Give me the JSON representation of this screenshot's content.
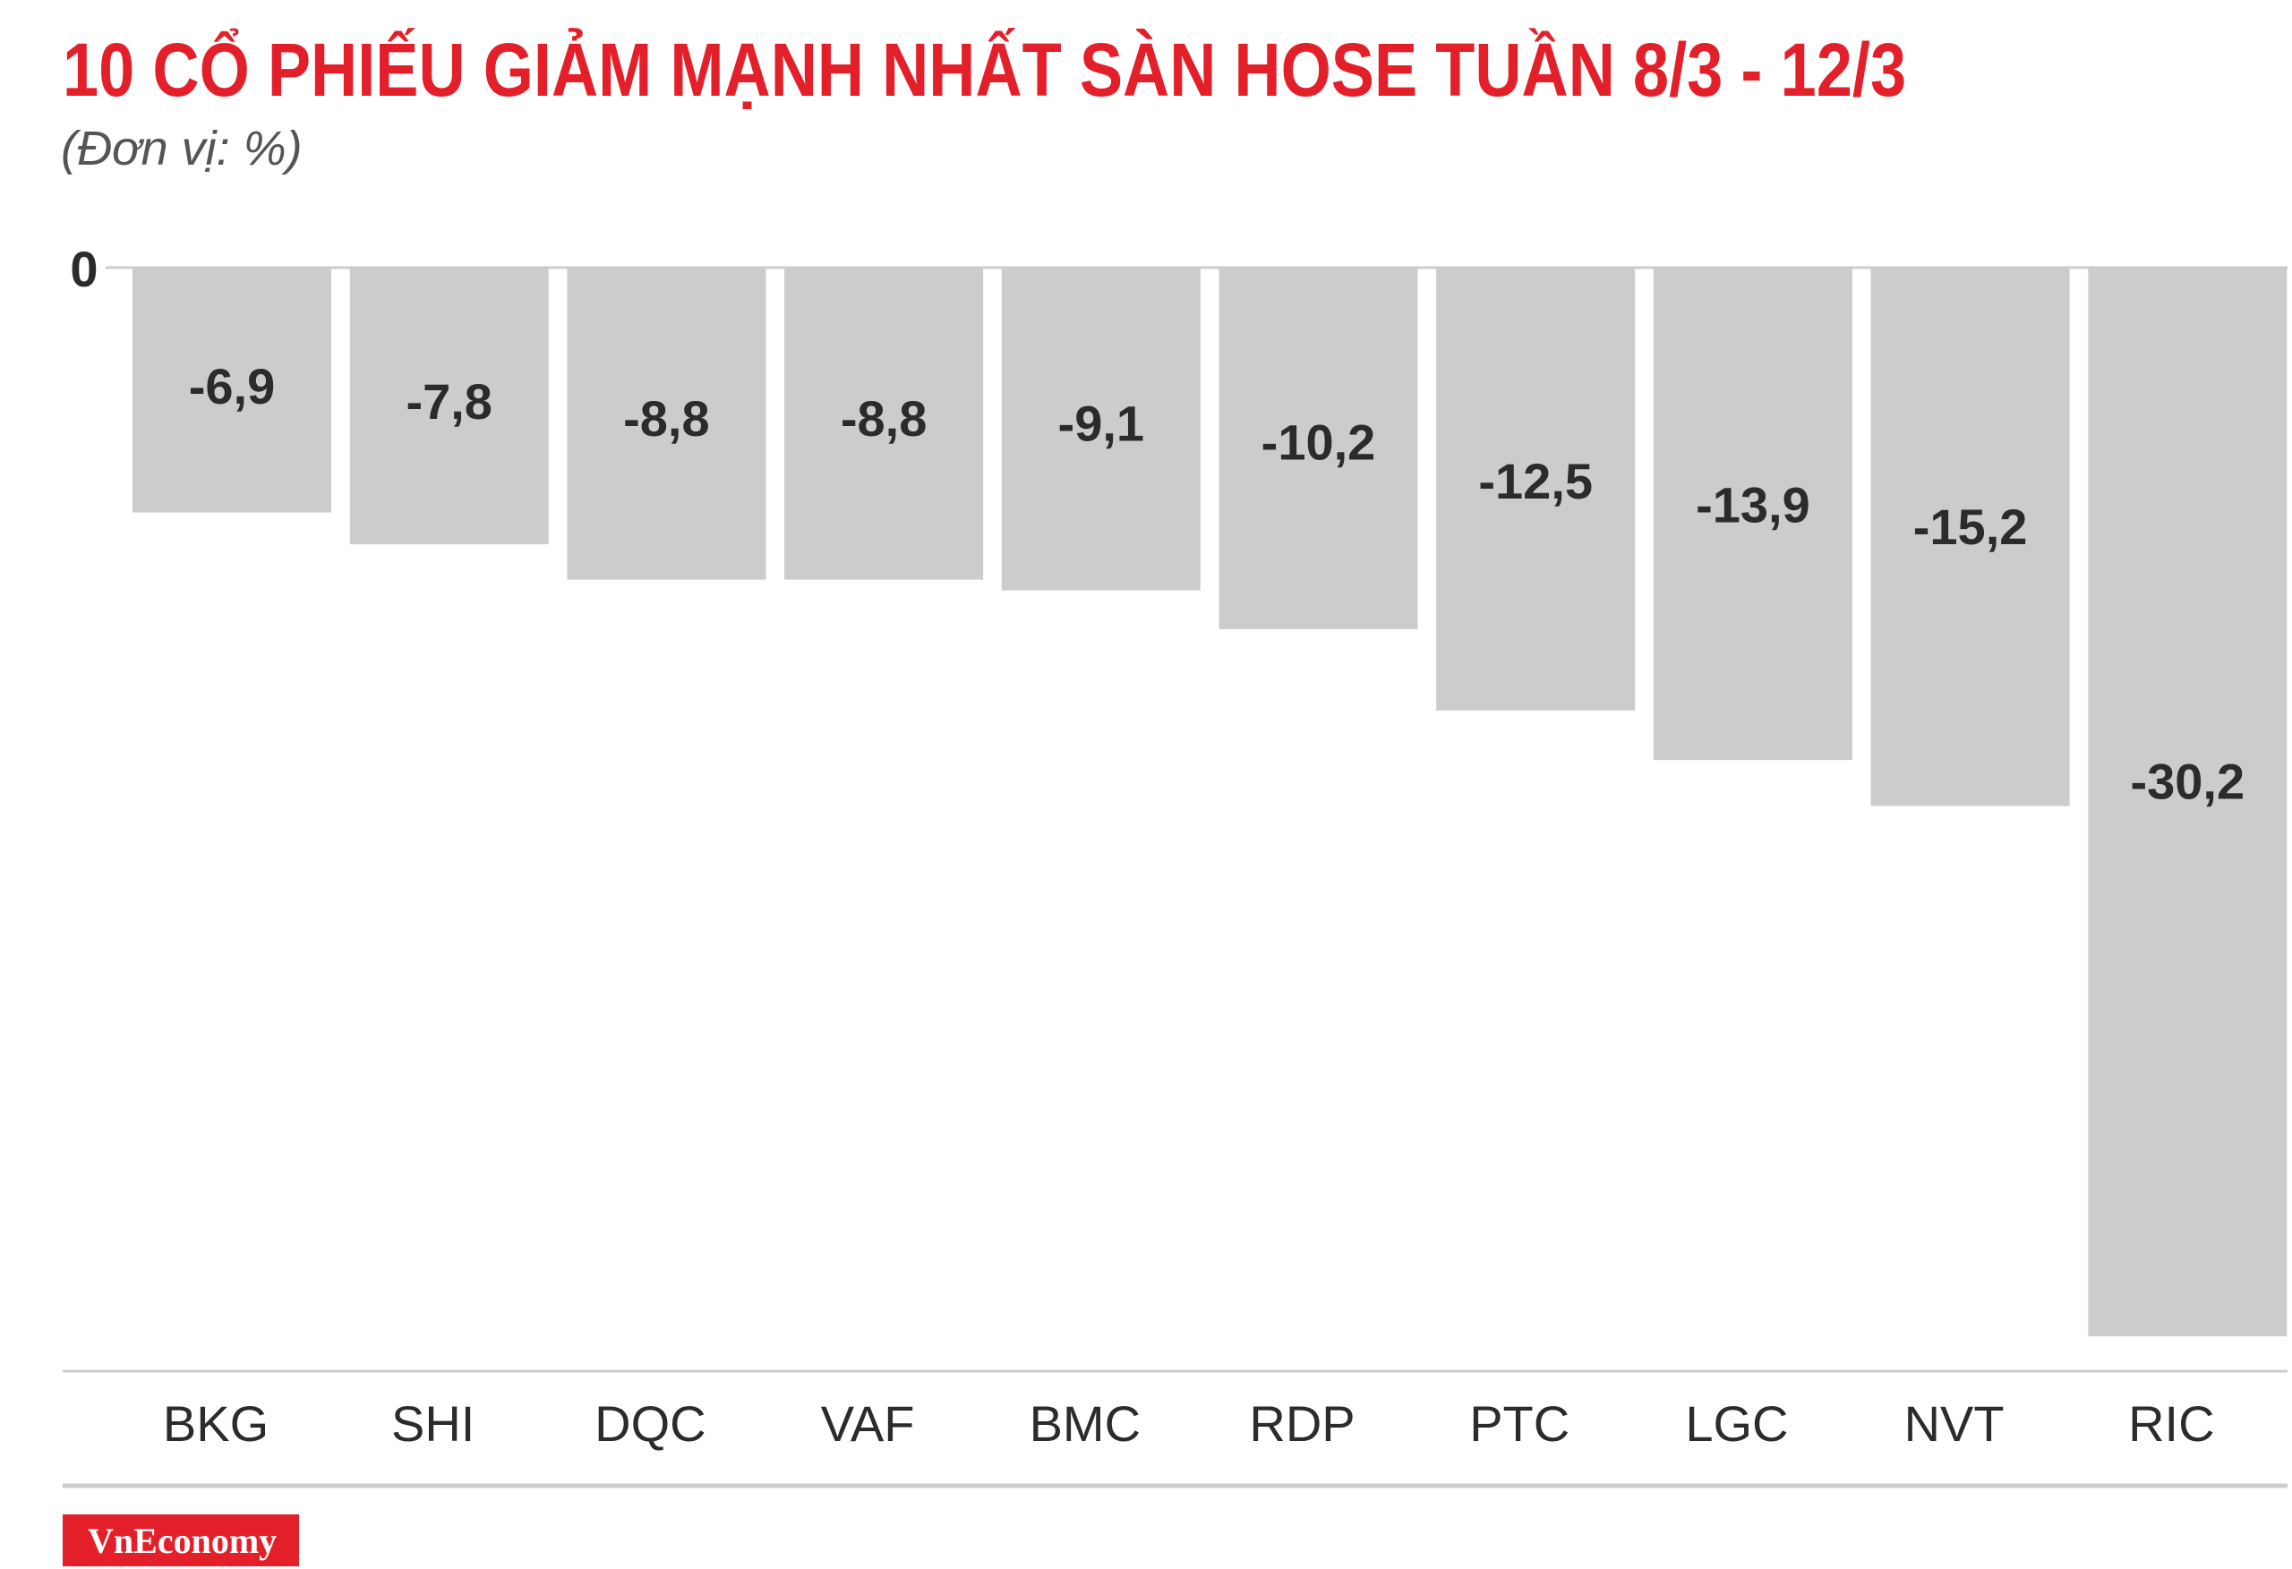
{
  "header": {
    "title": "10 CỔ PHIẾU GIẢM MẠNH NHẤT SÀN HOSE TUẦN 8/3 - 12/3",
    "subtitle": "(Đơn vị: %)"
  },
  "brand": {
    "name": "VnEconomy",
    "color": "#e3202a"
  },
  "colors": {
    "title": "#e3202a",
    "bar": "#cccccc",
    "text": "#2b2b2b",
    "axis": "#cccccc"
  },
  "chart_data": {
    "type": "bar",
    "title": "10 CỔ PHIẾU GIẢM MẠNH NHẤT SÀN HOSE TUẦN 8/3 - 12/3",
    "subtitle": "(Đơn vị: %)",
    "categories": [
      "BKG",
      "SHI",
      "DQC",
      "VAF",
      "BMC",
      "RDP",
      "PTC",
      "LGC",
      "NVT",
      "RIC"
    ],
    "values": [
      -6.9,
      -7.8,
      -8.8,
      -8.8,
      -9.1,
      -10.2,
      -12.5,
      -13.9,
      -15.2,
      -30.2
    ],
    "value_labels": [
      "-6,9",
      "-7,8",
      "-8,8",
      "-8,8",
      "-9,1",
      "-10,2",
      "-12,5",
      "-13,9",
      "-15,2",
      "-30,2"
    ],
    "zero_label": "0",
    "ylim": [
      -30.2,
      0
    ],
    "grid": false,
    "legend": "none"
  }
}
